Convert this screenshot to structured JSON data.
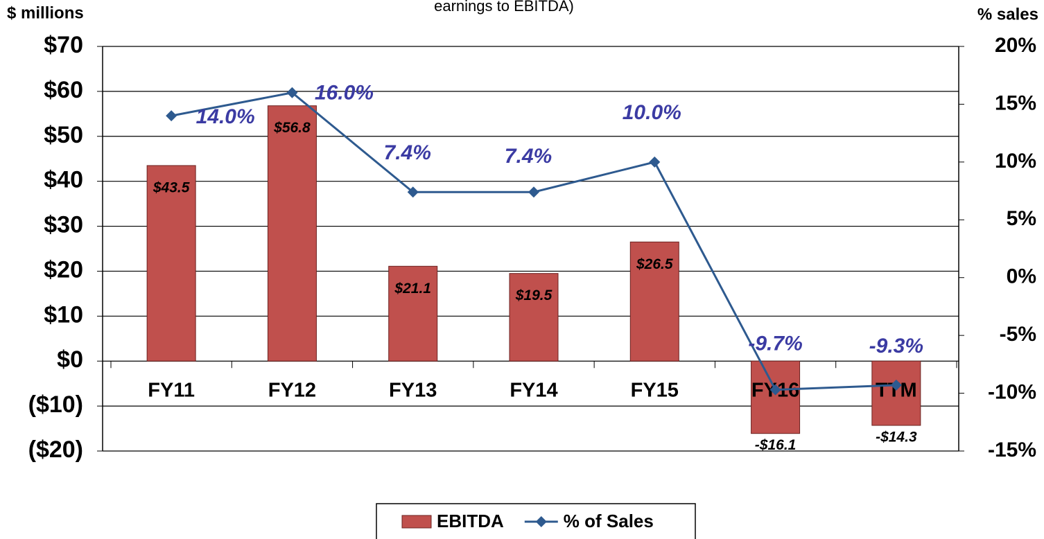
{
  "chart_data": {
    "type": "bar",
    "title": "earnings to EBITDA)",
    "ylabel": "$ millions",
    "y2label": "% sales",
    "categories": [
      "FY11",
      "FY12",
      "FY13",
      "FY14",
      "FY15",
      "FY16",
      "TTM"
    ],
    "series": [
      {
        "name": "EBITDA",
        "type": "bar",
        "color": "#c0504d",
        "values": [
          43.5,
          56.8,
          21.1,
          19.5,
          26.5,
          -16.1,
          -14.3
        ],
        "value_labels": [
          "$43.5",
          "$56.8",
          "$21.1",
          "$19.5",
          "$26.5",
          "-$16.1",
          "-$14.3"
        ]
      },
      {
        "name": "% of Sales",
        "type": "line",
        "axis": "y2",
        "color": "#2e5a8f",
        "values": [
          14.0,
          16.0,
          7.4,
          7.4,
          10.0,
          -9.7,
          -9.3
        ],
        "value_labels": [
          "14.0%",
          "16.0%",
          "7.4%",
          "7.4%",
          "10.0%",
          "-9.7%",
          "-9.3%"
        ]
      }
    ],
    "ylim": [
      -20,
      70
    ],
    "yticks": [
      {
        "value": 70,
        "label": "$70"
      },
      {
        "value": 60,
        "label": "$60"
      },
      {
        "value": 50,
        "label": "$50"
      },
      {
        "value": 40,
        "label": "$40"
      },
      {
        "value": 30,
        "label": "$30"
      },
      {
        "value": 20,
        "label": "$20"
      },
      {
        "value": 10,
        "label": "$10"
      },
      {
        "value": 0,
        "label": "$0"
      },
      {
        "value": -10,
        "label": "($10)"
      },
      {
        "value": -20,
        "label": "($20)"
      }
    ],
    "y2lim": [
      -15,
      20
    ],
    "y2ticks": [
      {
        "value": 20,
        "label": "20%"
      },
      {
        "value": 15,
        "label": "15%"
      },
      {
        "value": 10,
        "label": "10%"
      },
      {
        "value": 5,
        "label": "5%"
      },
      {
        "value": 0,
        "label": "0%"
      },
      {
        "value": -5,
        "label": "-5%"
      },
      {
        "value": -10,
        "label": "-10%"
      },
      {
        "value": -15,
        "label": "-15%"
      }
    ],
    "grid": true,
    "legend": "bottom"
  }
}
